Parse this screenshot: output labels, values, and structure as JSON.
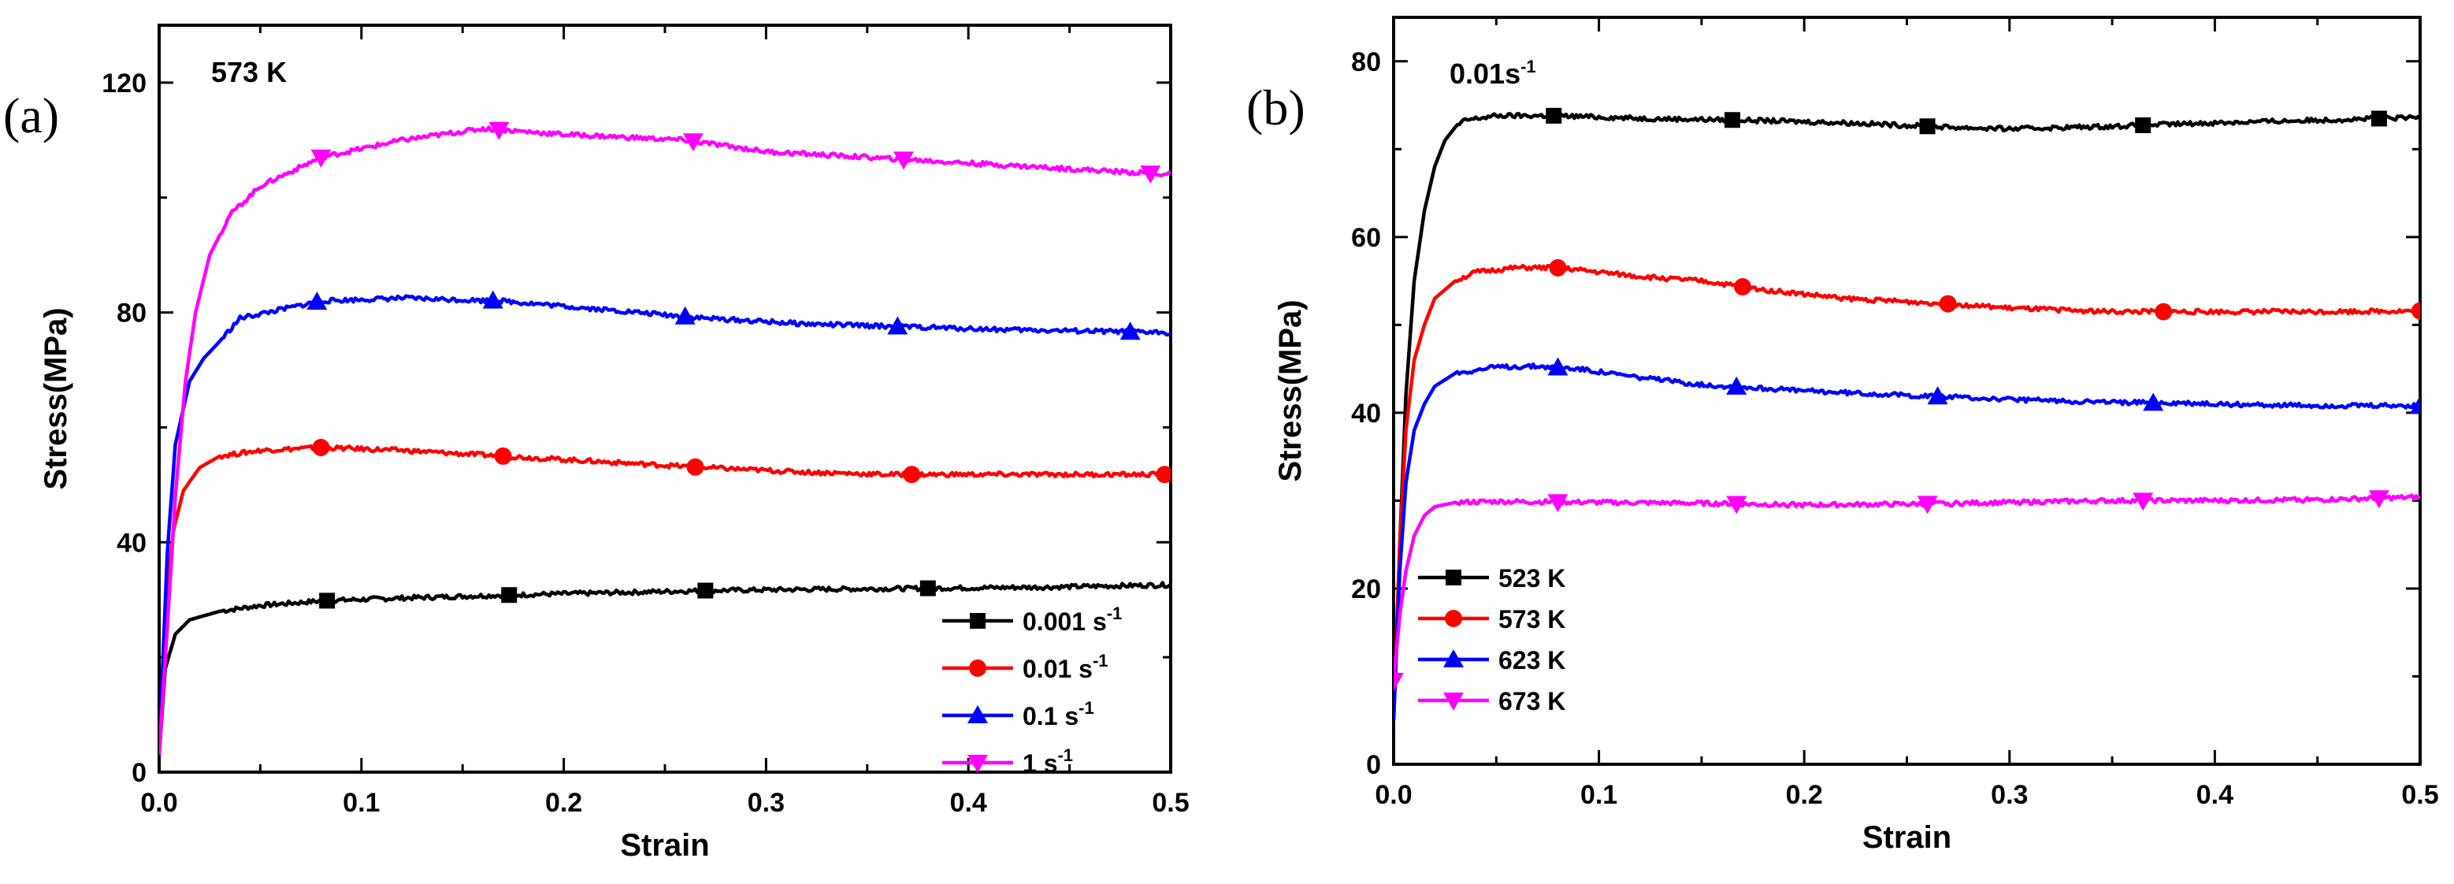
{
  "chart_data": [
    {
      "type": "line",
      "panel_label": "(a)",
      "annotation": "573 K",
      "xlabel": "Strain",
      "ylabel": "Stress(MPa)",
      "xlim": [
        0.0,
        0.5
      ],
      "ylim": [
        0,
        130
      ],
      "xticks": [
        "0.0",
        "0.1",
        "0.2",
        "0.3",
        "0.4",
        "0.5"
      ],
      "yticks": [
        "0",
        "40",
        "80",
        "120"
      ],
      "legend_position": "bottom-right",
      "series": [
        {
          "name": "0.001 s",
          "sup": "-1",
          "color": "#000000",
          "marker": "square",
          "x": [
            0,
            0.003,
            0.008,
            0.015,
            0.03,
            0.05,
            0.08,
            0.12,
            0.17,
            0.22,
            0.27,
            0.32,
            0.38,
            0.44,
            0.5
          ],
          "y": [
            3,
            18,
            24,
            26.5,
            28,
            29,
            29.8,
            30.3,
            30.8,
            31.2,
            31.6,
            31.8,
            32.0,
            32.2,
            32.6
          ],
          "marker_x": [
            0.083,
            0.173,
            0.27,
            0.38
          ]
        },
        {
          "name": "0.01 s",
          "sup": "-1",
          "color": "#ff0000",
          "marker": "circle",
          "x": [
            0,
            0.003,
            0.007,
            0.012,
            0.02,
            0.03,
            0.05,
            0.08,
            0.12,
            0.17,
            0.22,
            0.27,
            0.32,
            0.36,
            0.4,
            0.45,
            0.5
          ],
          "y": [
            3,
            28,
            42,
            49,
            53,
            55,
            56,
            56.5,
            56,
            55,
            54,
            53,
            52.2,
            51.8,
            51.8,
            51.8,
            51.8
          ],
          "marker_x": [
            0.08,
            0.17,
            0.265,
            0.372,
            0.497
          ]
        },
        {
          "name": "0.1 s",
          "sup": "-1",
          "color": "#0000ff",
          "marker": "triangle-up",
          "x": [
            0,
            0.004,
            0.008,
            0.015,
            0.022,
            0.03,
            0.04,
            0.06,
            0.08,
            0.12,
            0.17,
            0.22,
            0.27,
            0.32,
            0.37,
            0.42,
            0.5
          ],
          "y": [
            3,
            38,
            57,
            68,
            72,
            75,
            79,
            80.5,
            82,
            82.5,
            82,
            80.5,
            79,
            78,
            77.5,
            77,
            76.5
          ],
          "marker_x": [
            0.078,
            0.165,
            0.26,
            0.365,
            0.48
          ]
        },
        {
          "name": "1 s",
          "sup": "-1",
          "color": "#ff00ff",
          "marker": "triangle-down",
          "x": [
            0,
            0.004,
            0.008,
            0.013,
            0.018,
            0.025,
            0.035,
            0.05,
            0.08,
            0.12,
            0.16,
            0.2,
            0.26,
            0.3,
            0.35,
            0.4,
            0.45,
            0.5
          ],
          "y": [
            3,
            25,
            48,
            68,
            80,
            90,
            97,
            102,
            107,
            110,
            112,
            111,
            110,
            108,
            107,
            106,
            105,
            104
          ],
          "marker_x": [
            0.08,
            0.168,
            0.264,
            0.368,
            0.49
          ]
        }
      ]
    },
    {
      "type": "line",
      "panel_label": "(b)",
      "annotation": "0.01s",
      "annotation_sup": "-1",
      "xlabel": "Strain",
      "ylabel": "Stress(MPa)",
      "xlim": [
        0.0,
        0.5
      ],
      "ylim": [
        0,
        85
      ],
      "xticks": [
        "0.0",
        "0.1",
        "0.2",
        "0.3",
        "0.4",
        "0.5"
      ],
      "yticks": [
        "0",
        "20",
        "40",
        "60",
        "80"
      ],
      "legend_position": "bottom-right",
      "series": [
        {
          "name": "523 K",
          "color": "#000000",
          "marker": "square",
          "x": [
            0,
            0.003,
            0.006,
            0.01,
            0.015,
            0.02,
            0.025,
            0.03,
            0.035,
            0.05,
            0.08,
            0.12,
            0.17,
            0.22,
            0.27,
            0.3,
            0.35,
            0.4,
            0.45,
            0.5
          ],
          "y": [
            5,
            25,
            42,
            55,
            63,
            68,
            71,
            72.5,
            73.3,
            73.8,
            73.8,
            73.5,
            73.3,
            73,
            72.5,
            72.3,
            72.6,
            73,
            73.3,
            73.6
          ],
          "marker_x": [
            0.078,
            0.165,
            0.26,
            0.365,
            0.48
          ]
        },
        {
          "name": "573 K",
          "color": "#ff0000",
          "marker": "circle",
          "x": [
            0,
            0.003,
            0.006,
            0.01,
            0.015,
            0.02,
            0.03,
            0.04,
            0.06,
            0.08,
            0.1,
            0.12,
            0.15,
            0.18,
            0.22,
            0.27,
            0.3,
            0.35,
            0.4,
            0.45,
            0.5
          ],
          "y": [
            5,
            25,
            38,
            46,
            50,
            53,
            55,
            56,
            56.5,
            56.5,
            56,
            55.5,
            55,
            54,
            53,
            52.4,
            51.9,
            51.5,
            51.5,
            51.5,
            51.6
          ],
          "marker_x": [
            0.08,
            0.17,
            0.27,
            0.375,
            0.5
          ]
        },
        {
          "name": "623 K",
          "color": "#0000ff",
          "marker": "triangle-up",
          "x": [
            0,
            0.003,
            0.006,
            0.01,
            0.015,
            0.02,
            0.03,
            0.05,
            0.07,
            0.09,
            0.12,
            0.15,
            0.2,
            0.25,
            0.3,
            0.35,
            0.4,
            0.45,
            0.5
          ],
          "y": [
            5,
            22,
            32,
            38,
            41,
            43,
            44.5,
            45.2,
            45.3,
            45,
            44,
            43.2,
            42.5,
            42,
            41.5,
            41.2,
            41,
            40.8,
            40.8
          ],
          "marker_x": [
            0.08,
            0.167,
            0.265,
            0.37,
            0.5
          ]
        },
        {
          "name": "673 K",
          "color": "#ff00ff",
          "marker": "triangle-down",
          "x": [
            0,
            0.003,
            0.006,
            0.01,
            0.015,
            0.02,
            0.03,
            0.05,
            0.1,
            0.15,
            0.2,
            0.25,
            0.3,
            0.35,
            0.4,
            0.45,
            0.5
          ],
          "y": [
            9.5,
            17,
            22,
            26,
            28.3,
            29.3,
            29.8,
            29.9,
            29.8,
            29.7,
            29.5,
            29.6,
            29.8,
            30,
            30,
            30.1,
            30.4
          ],
          "marker_x": [
            0.0,
            0.08,
            0.167,
            0.26,
            0.365,
            0.48
          ]
        }
      ]
    }
  ]
}
